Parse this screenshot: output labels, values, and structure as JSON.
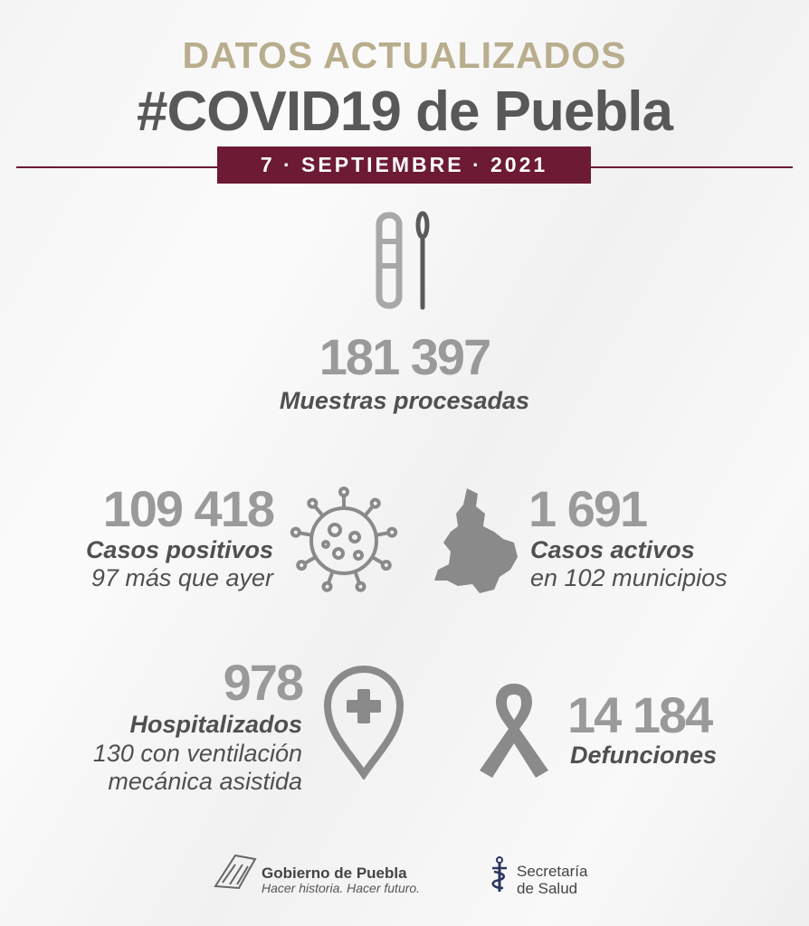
{
  "header": {
    "kicker": "DATOS ACTUALIZADOS",
    "title": "#COVID19 de Puebla",
    "date": "7 · SEPTIEMBRE · 2021"
  },
  "colors": {
    "brand": "#6d1a34",
    "gold": "#b8ad8c",
    "number": "#9a9a9a",
    "text": "#505050"
  },
  "stats": {
    "samples": {
      "value": "181 397",
      "label": "Muestras procesadas",
      "icon": "test-tube-swab-icon"
    },
    "positive": {
      "value": "109 418",
      "label": "Casos positivos",
      "sub": "97 más que ayer",
      "icon": "virus-icon"
    },
    "active": {
      "value": "1 691",
      "label": "Casos activos",
      "sub": "en 102 municipios",
      "icon": "puebla-map-icon"
    },
    "hospital": {
      "value": "978",
      "label": "Hospitalizados",
      "sub1": "130 con ventilación",
      "sub2": "mecánica asistida",
      "icon": "hospital-pin-icon"
    },
    "deaths": {
      "value": "14 184",
      "label": "Defunciones",
      "icon": "ribbon-icon"
    }
  },
  "footer": {
    "gov_name": "Gobierno de Puebla",
    "gov_slogan": "Hacer historia. Hacer futuro.",
    "health1": "Secretaría",
    "health2": "de Salud"
  }
}
